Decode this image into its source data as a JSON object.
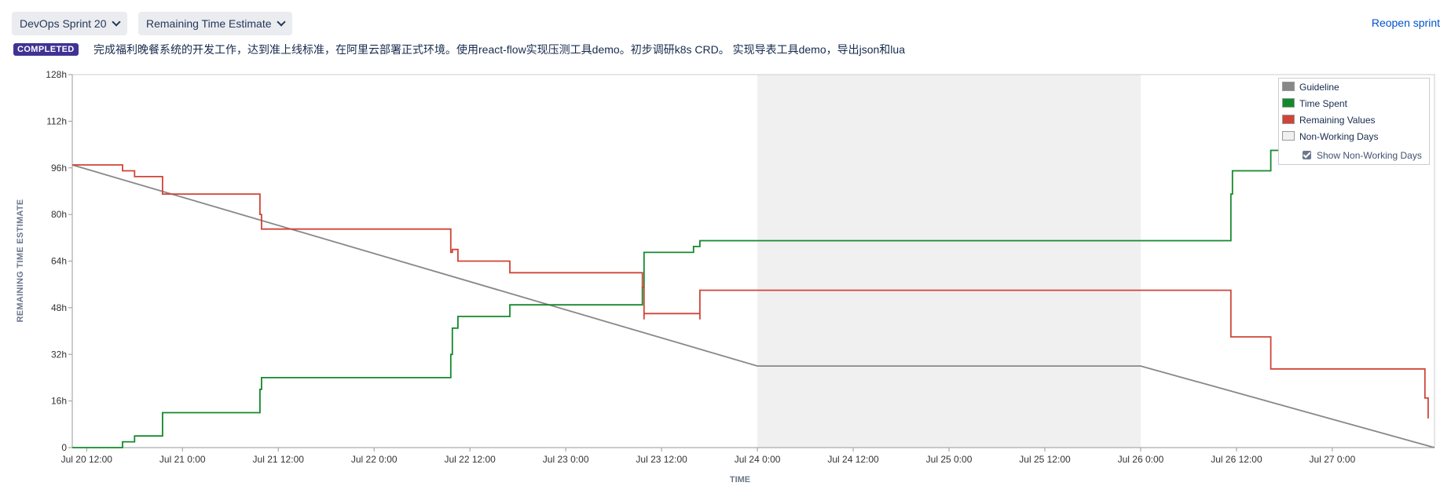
{
  "header": {
    "sprint_select": "DevOps Sprint 20",
    "metric_select": "Remaining Time Estimate",
    "reopen_link": "Reopen sprint",
    "status_badge": "COMPLETED",
    "sprint_goal": "完成福利晚餐系统的开发工作，达到准上线标准，在阿里云部署正式环境。使用react-flow实现压测工具demo。初步调研k8s CRD。 实现导表工具demo，导出json和lua"
  },
  "legend": {
    "items": [
      {
        "label": "Guideline",
        "color": "#888888"
      },
      {
        "label": "Time Spent",
        "color": "#14892c"
      },
      {
        "label": "Remaining Values",
        "color": "#d04437"
      },
      {
        "label": "Non-Working Days",
        "color": "#f0f0f0"
      }
    ],
    "show_non_working_label": "Show Non-Working Days",
    "show_non_working_checked": true
  },
  "chart_data": {
    "type": "line",
    "xlabel": "TIME",
    "ylabel": "REMAINING TIME ESTIMATE",
    "x_unit": "hours since Jul 20 0:00",
    "xlim": [
      10.2,
      180.8
    ],
    "ylim": [
      0,
      128
    ],
    "y_ticks": [
      0,
      16,
      32,
      48,
      64,
      80,
      96,
      112,
      128
    ],
    "y_tick_labels": [
      "0",
      "16h",
      "32h",
      "48h",
      "64h",
      "80h",
      "96h",
      "112h",
      "128h"
    ],
    "x_ticks": [
      12,
      24,
      36,
      48,
      60,
      72,
      84,
      96,
      108,
      120,
      132,
      144,
      156,
      168
    ],
    "x_tick_labels": [
      "Jul 20 12:00",
      "Jul 21 0:00",
      "Jul 21 12:00",
      "Jul 22 0:00",
      "Jul 22 12:00",
      "Jul 23 0:00",
      "Jul 23 12:00",
      "Jul 24 0:00",
      "Jul 24 12:00",
      "Jul 25 0:00",
      "Jul 25 12:00",
      "Jul 26 0:00",
      "Jul 26 12:00",
      "Jul 27 0:00"
    ],
    "non_working_days": [
      [
        96,
        144
      ]
    ],
    "grid": false,
    "legend_position": "top-right",
    "series": [
      {
        "name": "Guideline",
        "color": "#888888",
        "points": [
          [
            10.2,
            97
          ],
          [
            96,
            28
          ],
          [
            144,
            28
          ],
          [
            180.8,
            0
          ]
        ]
      },
      {
        "name": "Time Spent",
        "color": "#14892c",
        "points": [
          [
            10.2,
            0
          ],
          [
            16.5,
            0
          ],
          [
            16.5,
            2
          ],
          [
            18,
            2
          ],
          [
            18,
            4
          ],
          [
            18.3,
            4
          ],
          [
            18.3,
            4
          ],
          [
            21.5,
            4
          ],
          [
            21.5,
            12
          ],
          [
            33.7,
            12
          ],
          [
            33.7,
            20
          ],
          [
            33.9,
            20
          ],
          [
            33.9,
            24
          ],
          [
            57.6,
            24
          ],
          [
            57.6,
            32
          ],
          [
            57.8,
            32
          ],
          [
            57.8,
            41
          ],
          [
            58.5,
            41
          ],
          [
            58.5,
            45
          ],
          [
            65,
            45
          ],
          [
            65,
            49
          ],
          [
            81.6,
            49
          ],
          [
            81.6,
            55
          ],
          [
            81.8,
            55
          ],
          [
            81.8,
            67
          ],
          [
            88,
            67
          ],
          [
            88,
            69
          ],
          [
            88.8,
            69
          ],
          [
            88.8,
            71
          ],
          [
            155.3,
            71
          ],
          [
            155.3,
            87
          ],
          [
            155.5,
            87
          ],
          [
            155.5,
            95
          ],
          [
            160.3,
            95
          ],
          [
            160.3,
            102
          ],
          [
            161.5,
            102
          ]
        ]
      },
      {
        "name": "Remaining Values",
        "color": "#d04437",
        "points": [
          [
            10.2,
            97
          ],
          [
            16.5,
            97
          ],
          [
            16.5,
            95
          ],
          [
            18,
            95
          ],
          [
            18,
            93
          ],
          [
            21.5,
            93
          ],
          [
            21.5,
            87
          ],
          [
            33.7,
            87
          ],
          [
            33.7,
            80
          ],
          [
            33.9,
            80
          ],
          [
            33.9,
            75
          ],
          [
            57.6,
            75
          ],
          [
            57.6,
            67
          ],
          [
            57.8,
            67
          ],
          [
            57.8,
            68
          ],
          [
            58.5,
            68
          ],
          [
            58.5,
            64
          ],
          [
            65,
            64
          ],
          [
            65,
            60
          ],
          [
            81.6,
            60
          ],
          [
            81.6,
            55
          ],
          [
            81.8,
            55
          ],
          [
            81.8,
            44
          ],
          [
            81.8,
            46
          ],
          [
            88.8,
            46
          ],
          [
            88.8,
            44
          ],
          [
            88.8,
            54
          ],
          [
            155.3,
            54
          ],
          [
            155.3,
            38
          ],
          [
            160.3,
            38
          ],
          [
            160.3,
            27
          ],
          [
            179.6,
            27
          ],
          [
            179.6,
            17
          ],
          [
            180,
            17
          ],
          [
            180,
            10
          ]
        ]
      }
    ]
  }
}
